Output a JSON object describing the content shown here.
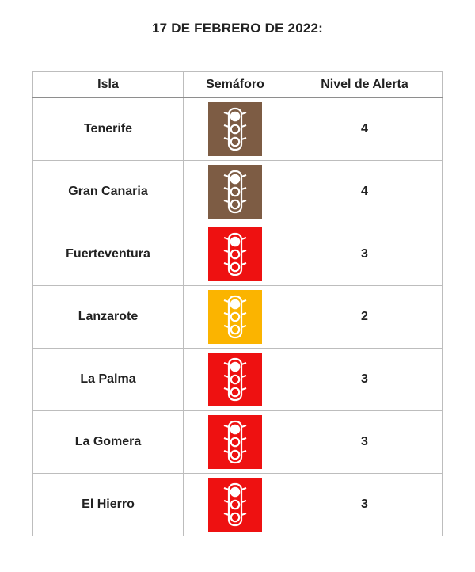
{
  "title": "17 DE FEBRERO DE 2022:",
  "headers": {
    "isla": "Isla",
    "semaforo": "Semáforo",
    "nivel": "Nivel de Alerta"
  },
  "colors": {
    "level_4": "#7d5c44",
    "level_3": "#ee1111",
    "level_2": "#fbb400"
  },
  "rows": [
    {
      "isla": "Tenerife",
      "nivel": "4",
      "color": "#7d5c44",
      "icon": "traffic-light-icon"
    },
    {
      "isla": "Gran Canaria",
      "nivel": "4",
      "color": "#7d5c44",
      "icon": "traffic-light-icon"
    },
    {
      "isla": "Fuerteventura",
      "nivel": "3",
      "color": "#ee1111",
      "icon": "traffic-light-icon"
    },
    {
      "isla": "Lanzarote",
      "nivel": "2",
      "color": "#fbb400",
      "icon": "traffic-light-icon"
    },
    {
      "isla": "La Palma",
      "nivel": "3",
      "color": "#ee1111",
      "icon": "traffic-light-icon"
    },
    {
      "isla": "La Gomera",
      "nivel": "3",
      "color": "#ee1111",
      "icon": "traffic-light-icon"
    },
    {
      "isla": "El Hierro",
      "nivel": "3",
      "color": "#ee1111",
      "icon": "traffic-light-icon"
    }
  ]
}
